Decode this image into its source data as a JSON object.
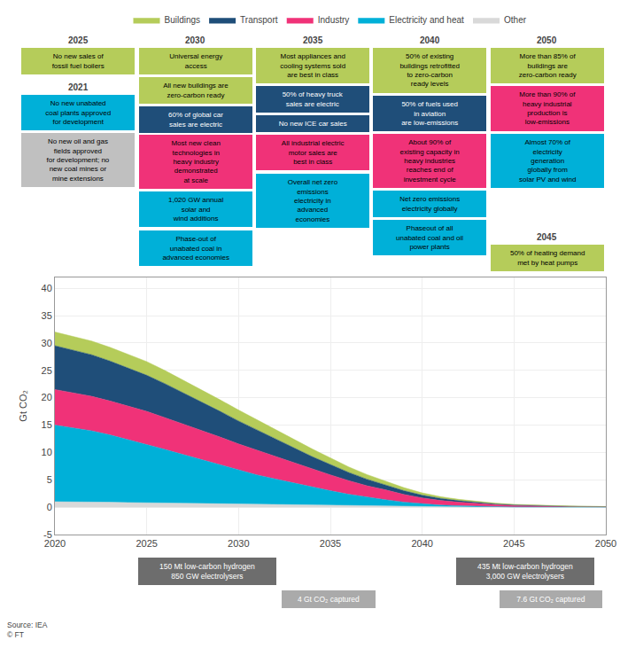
{
  "chart_data": {
    "type": "area",
    "stacked": true,
    "ylabel": "Gt CO₂",
    "x": [
      2020,
      2021,
      2022,
      2023,
      2024,
      2025,
      2026,
      2027,
      2028,
      2029,
      2030,
      2031,
      2032,
      2033,
      2034,
      2035,
      2036,
      2037,
      2038,
      2039,
      2040,
      2041,
      2042,
      2043,
      2044,
      2045,
      2046,
      2047,
      2048,
      2049,
      2050
    ],
    "series": [
      {
        "name": "Other",
        "color": "#d9d9d9",
        "values": [
          1.0,
          1.0,
          0.95,
          0.9,
          0.85,
          0.8,
          0.75,
          0.7,
          0.65,
          0.6,
          0.55,
          0.5,
          0.45,
          0.4,
          0.35,
          0.3,
          0.25,
          0.2,
          0.16,
          0.12,
          0.09,
          0.07,
          0.05,
          0.04,
          0.03,
          0.02,
          0.02,
          0.01,
          0.01,
          0.01,
          0.01
        ]
      },
      {
        "name": "Electricity and heat",
        "color": "#00b0d8",
        "values": [
          14.0,
          13.5,
          13.0,
          12.3,
          11.5,
          10.7,
          9.8,
          8.9,
          8.0,
          7.1,
          6.2,
          5.4,
          4.7,
          4.0,
          3.3,
          2.7,
          2.1,
          1.6,
          1.2,
          0.8,
          0.5,
          0.3,
          0.2,
          0.1,
          0.05,
          0.02,
          0.01,
          0.01,
          0.0,
          0.0,
          0.0
        ]
      },
      {
        "name": "Industry",
        "color": "#f03278",
        "values": [
          6.5,
          6.4,
          6.3,
          6.2,
          6.1,
          6.0,
          5.8,
          5.6,
          5.4,
          5.1,
          4.8,
          4.5,
          4.1,
          3.7,
          3.3,
          2.9,
          2.5,
          2.1,
          1.8,
          1.4,
          1.1,
          0.85,
          0.65,
          0.5,
          0.38,
          0.28,
          0.2,
          0.15,
          0.11,
          0.08,
          0.06
        ]
      },
      {
        "name": "Transport",
        "color": "#1f4e79",
        "values": [
          8.0,
          7.8,
          7.6,
          7.3,
          7.0,
          6.6,
          6.2,
          5.7,
          5.2,
          4.7,
          4.2,
          3.7,
          3.2,
          2.7,
          2.3,
          1.9,
          1.5,
          1.2,
          0.9,
          0.7,
          0.5,
          0.38,
          0.28,
          0.2,
          0.14,
          0.1,
          0.07,
          0.05,
          0.04,
          0.03,
          0.02
        ]
      },
      {
        "name": "Buildings",
        "color": "#b5cc5a",
        "values": [
          2.5,
          2.5,
          2.5,
          2.5,
          2.5,
          2.5,
          2.4,
          2.3,
          2.2,
          2.1,
          2.0,
          1.85,
          1.7,
          1.55,
          1.4,
          1.2,
          1.0,
          0.85,
          0.7,
          0.55,
          0.42,
          0.32,
          0.24,
          0.18,
          0.13,
          0.1,
          0.08,
          0.06,
          0.05,
          0.04,
          0.03
        ]
      }
    ],
    "xlim": [
      2020,
      2050
    ],
    "ylim": [
      -5,
      42
    ],
    "xticks": [
      2020,
      2025,
      2030,
      2035,
      2040,
      2045,
      2050
    ],
    "yticks": [
      -5,
      0,
      5,
      10,
      15,
      20,
      25,
      30,
      35,
      40
    ],
    "grid": true,
    "legend": "top",
    "annotations": [
      {
        "label": "2021",
        "boxes": [
          {
            "text": "No new unabated\ncoal plants approved\nfor development",
            "color": "#00b0d8",
            "text_color": "#000000"
          },
          {
            "text": "No new oil and gas\nfields approved\nfor development; no\nnew coal mines or\nmine extensions",
            "color": "#c0c0c0",
            "text_color": "#000000"
          }
        ]
      },
      {
        "label": "2025",
        "boxes": [
          {
            "text": "No new sales of\nfossil fuel boilers",
            "color": "#b5cc5a",
            "text_color": "#000000"
          }
        ]
      },
      {
        "label": "2030",
        "boxes": [
          {
            "text": "Universal energy\naccess",
            "color": "#b5cc5a",
            "text_color": "#000000"
          },
          {
            "text": "All new buildings are\nzero-carbon ready",
            "color": "#b5cc5a",
            "text_color": "#000000"
          },
          {
            "text": "60% of global car\nsales are electric",
            "color": "#1f4e79",
            "text_color": "#ffffff"
          },
          {
            "text": "Most new clean\ntechnologies in\nheavy industry\ndemonstrated\nat scale",
            "color": "#f03278",
            "text_color": "#000000"
          },
          {
            "text": "1,020 GW annual\nsolar and\nwind additions",
            "color": "#00b0d8",
            "text_color": "#000000"
          },
          {
            "text": "Phase-out of\nunabated coal in\nadvanced economies",
            "color": "#00b0d8",
            "text_color": "#000000"
          }
        ]
      },
      {
        "label": "2035",
        "boxes": [
          {
            "text": "Most appliances and\ncooling systems sold\nare best in class",
            "color": "#b5cc5a",
            "text_color": "#000000"
          },
          {
            "text": "50% of heavy truck\nsales are electric",
            "color": "#1f4e79",
            "text_color": "#ffffff"
          },
          {
            "text": "No new ICE car sales",
            "color": "#1f4e79",
            "text_color": "#ffffff"
          },
          {
            "text": "All industrial electric\nmotor sales are\nbest in class",
            "color": "#f03278",
            "text_color": "#000000"
          },
          {
            "text": "Overall net zero\nemissions\nelectricity in\nadvanced\neconomies",
            "color": "#00b0d8",
            "text_color": "#000000"
          }
        ]
      },
      {
        "label": "2040",
        "boxes": [
          {
            "text": "50% of existing\nbuildings retrofitted\nto zero-carbon\nready levels",
            "color": "#b5cc5a",
            "text_color": "#000000"
          },
          {
            "text": "50% of fuels used\nin aviation\nare low-emissions",
            "color": "#1f4e79",
            "text_color": "#ffffff"
          },
          {
            "text": "About 90% of\nexisting capacity in\nheavy industries\nreaches end of\ninvestment cycle",
            "color": "#f03278",
            "text_color": "#000000"
          },
          {
            "text": "Net zero emissions\nelectricity globally",
            "color": "#00b0d8",
            "text_color": "#000000"
          },
          {
            "text": "Phaseout of all\nunabated coal and oil\npower plants",
            "color": "#00b0d8",
            "text_color": "#000000"
          }
        ]
      },
      {
        "label": "2045",
        "boxes": [
          {
            "text": "50% of heating demand\nmet by heat pumps",
            "color": "#b5cc5a",
            "text_color": "#000000"
          }
        ]
      },
      {
        "label": "2050",
        "boxes": [
          {
            "text": "More than 85% of\nbuildings are\nzero-carbon ready",
            "color": "#b5cc5a",
            "text_color": "#000000"
          },
          {
            "text": "More than 90% of\nheavy industrial\nproduction is\nlow-emissions",
            "color": "#f03278",
            "text_color": "#000000"
          },
          {
            "text": "Almost 70% of\nelectricity\ngeneration\nglobally from\nsolar PV and wind",
            "color": "#00b0d8",
            "text_color": "#000000"
          }
        ]
      }
    ],
    "footnotes": [
      {
        "text": "150 Mt low-carbon hydrogen\n850 GW electrolysers",
        "color": "#6d6d6d",
        "text_color": "#ffffff"
      },
      {
        "text": "435 Mt low-carbon hydrogen\n3,000 GW electrolysers",
        "color": "#6d6d6d",
        "text_color": "#ffffff"
      },
      {
        "text": "4 Gt CO₂ captured",
        "color": "#aaaaaa",
        "text_color": "#ffffff"
      },
      {
        "text": "7.6 Gt CO₂ captured",
        "color": "#aaaaaa",
        "text_color": "#ffffff"
      }
    ],
    "source": "Source: IEA\n© FT"
  }
}
